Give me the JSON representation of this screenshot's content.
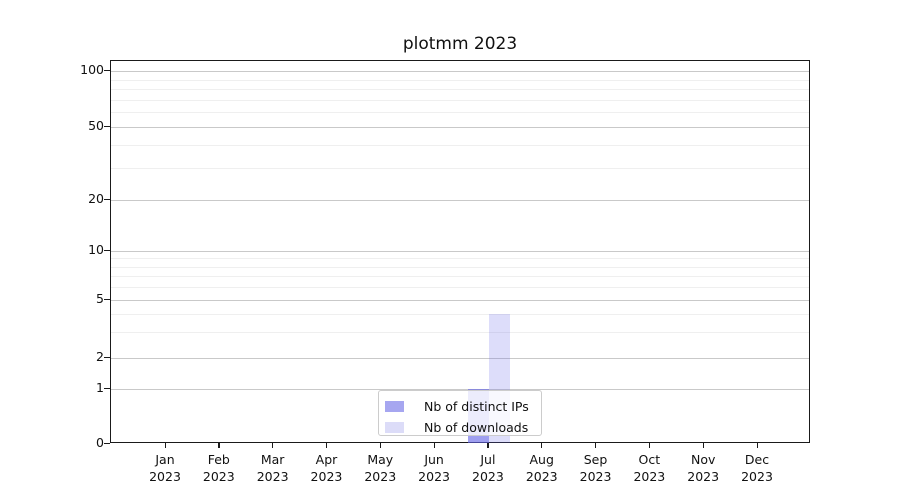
{
  "chart_data": {
    "type": "bar",
    "title": "plotmm 2023",
    "categories_months": [
      "Jan",
      "Feb",
      "Mar",
      "Apr",
      "May",
      "Jun",
      "Jul",
      "Aug",
      "Sep",
      "Oct",
      "Nov",
      "Dec"
    ],
    "year": "2023",
    "series": [
      {
        "name": "Nb of distinct IPs",
        "values": [
          0,
          0,
          0,
          0,
          0,
          0,
          1,
          0,
          0,
          0,
          0,
          0
        ],
        "fill": "rgba(100,100,230,0.62)",
        "legend_swatch": "#a6a6f0"
      },
      {
        "name": "Nb of downloads",
        "values": [
          0,
          0,
          0,
          0,
          0,
          0,
          4,
          0,
          0,
          0,
          0,
          0
        ],
        "fill": "rgba(100,100,230,0.22)",
        "legend_swatch": "#dcdcf8"
      }
    ],
    "y_axis": {
      "ticks": [
        0,
        1,
        2,
        5,
        10,
        20,
        50,
        100
      ],
      "minor_ticks": [
        3,
        4,
        6,
        7,
        8,
        9,
        30,
        40,
        60,
        70,
        80,
        90
      ],
      "scale": "symlog",
      "ylim": [
        0,
        100
      ]
    },
    "grid": {
      "major_color": "#c9c9c9",
      "minor_color": "#efefef"
    },
    "legend": {
      "position": "lower-center",
      "entries": [
        "Nb of distinct IPs",
        "Nb of downloads"
      ]
    }
  }
}
